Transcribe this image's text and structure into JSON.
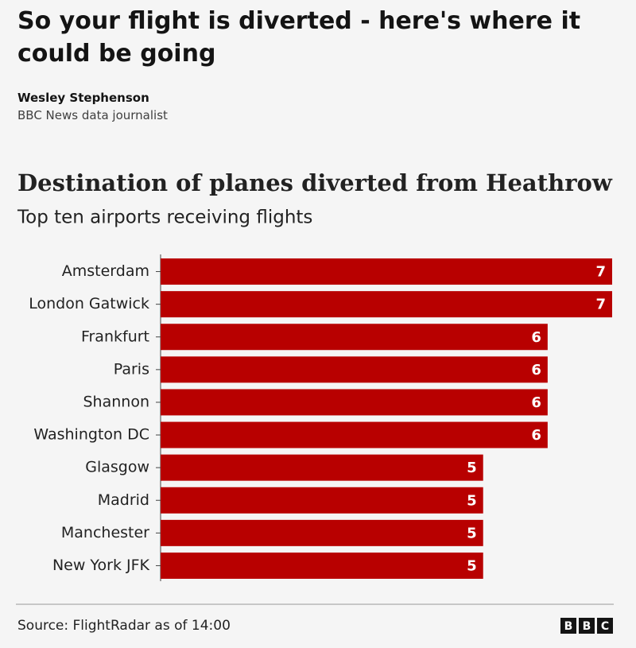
{
  "header": {
    "headline": "So your flight is diverted - here's where it could be going",
    "author": "Wesley Stephenson",
    "role": "BBC News data journalist"
  },
  "chart_data": {
    "type": "bar",
    "orientation": "horizontal",
    "title": "Destination of planes diverted from Heathrow",
    "subtitle": "Top ten airports receiving flights",
    "categories": [
      "Amsterdam",
      "London Gatwick",
      "Frankfurt",
      "Paris",
      "Shannon",
      "Washington DC",
      "Glasgow",
      "Madrid",
      "Manchester",
      "New York JFK"
    ],
    "values": [
      7,
      7,
      6,
      6,
      6,
      6,
      5,
      5,
      5,
      5
    ],
    "color": "#b80000",
    "xlim": [
      0,
      7
    ],
    "source": "Source: FlightRadar as of 14:00"
  },
  "logo": [
    "B",
    "B",
    "C"
  ]
}
